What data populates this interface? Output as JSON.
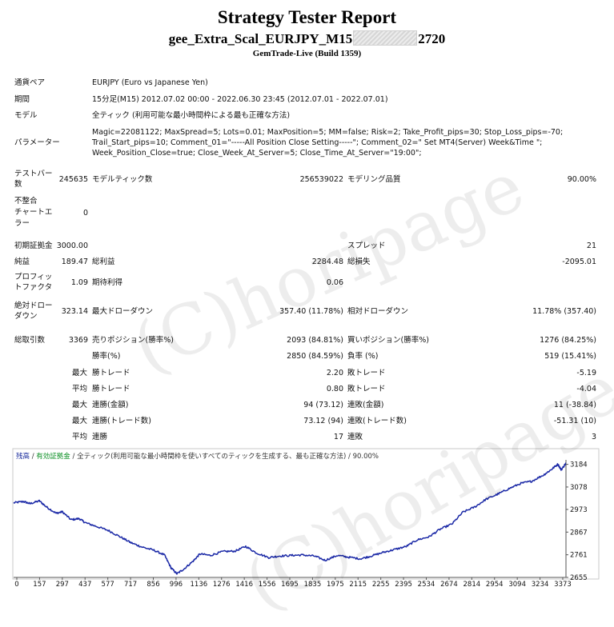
{
  "report": {
    "title": "Strategy Tester Report",
    "ea_prefix": "gee_Extra_Scal_EURJPY_M15",
    "ea_suffix": "2720",
    "build": "GemTrade-Live (Build 1359)"
  },
  "info": {
    "symbol_label": "通貨ペア",
    "symbol_value": "EURJPY (Euro vs Japanese Yen)",
    "period_label": "期間",
    "period_value": "15分足(M15) 2012.07.02 00:00 - 2022.06.30 23:45 (2012.07.01 - 2022.07.01)",
    "model_label": "モデル",
    "model_value": "全ティック (利用可能な最小時間枠による最も正確な方法)",
    "params_label": "パラメーター",
    "params_lines": [
      "Magic=22081122; MaxSpread=5; Lots=0.01; MaxPosition=5; MM=false; Risk=2; Take_Profit_pips=30; Stop_Loss_pips=-70;",
      "Trail_Start_pips=10; Comment_01=\"-----All Position Close Setting-----\"; Comment_02=\" Set MT4(Server) Week&Time \";",
      "Week_Position_Close=true; Close_Week_At_Server=5; Close_Time_At_Server=\"19:00\";"
    ]
  },
  "stats": {
    "bars_label_1": "テストバー",
    "bars_label_2": "数",
    "bars_value": "245635",
    "ticks_label": "モデルティック数",
    "ticks_value": "256539022",
    "quality_label": "モデリング品質",
    "quality_value": "90.00%",
    "mismatch_label_1": "不整合",
    "mismatch_label_2": "チャートエ",
    "mismatch_label_3": "ラー",
    "mismatch_value": "0",
    "deposit_label": "初期証拠金",
    "deposit_value": "3000.00",
    "spread_label": "スプレッド",
    "spread_value": "21",
    "net_label": "純益",
    "net_value": "189.47",
    "gross_profit_label": "総利益",
    "gross_profit_value": "2284.48",
    "gross_loss_label": "総損失",
    "gross_loss_value": "-2095.01",
    "pf_label_1": "プロフィッ",
    "pf_label_2": "トファクタ",
    "pf_value": "1.09",
    "payoff_label": "期待利得",
    "payoff_value": "0.06",
    "abs_dd_label_1": "絶対ドロー",
    "abs_dd_label_2": "ダウン",
    "abs_dd_value": "323.14",
    "max_dd_label": "最大ドローダウン",
    "max_dd_value": "357.40 (11.78%)",
    "rel_dd_label": "相対ドローダウン",
    "rel_dd_value": "11.78% (357.40)",
    "trades_label": "総取引数",
    "trades_value": "3369",
    "short_label": "売りポジション(勝率%)",
    "short_value": "2093 (84.81%)",
    "long_label": "買いポジション(勝率%)",
    "long_value": "1276 (84.25%)",
    "win_pct_label": "勝率(%)",
    "win_pct_value": "2850 (84.59%)",
    "loss_pct_label": "負率 (%)",
    "loss_pct_value": "519 (15.41%)",
    "largest": "最大",
    "largest_win_label": "勝トレード",
    "largest_win_value": "2.20",
    "largest_loss_label": "敗トレード",
    "largest_loss_value": "-5.19",
    "average": "平均",
    "avg_win_label": "勝トレード",
    "avg_win_value": "0.80",
    "avg_loss_label": "敗トレード",
    "avg_loss_value": "-4.04",
    "max_cons_wins_label": "連勝(金額)",
    "max_cons_wins_value": "94 (73.12)",
    "max_cons_losses_label": "連敗(金額)",
    "max_cons_losses_value": "11 (-38.84)",
    "max_cons_profit_label": "連勝(トレード数)",
    "max_cons_profit_value": "73.12 (94)",
    "max_cons_loss_label": "連敗(トレード数)",
    "max_cons_loss_value": "-51.31 (10)",
    "avg_cons_wins_label": "連勝",
    "avg_cons_wins_value": "17",
    "avg_cons_losses_label": "連敗",
    "avg_cons_losses_value": "3"
  },
  "watermark": "(C)horipage",
  "chart_data": {
    "type": "line",
    "legend": {
      "balance": "残高",
      "sep1": " / ",
      "equity": "有効証拠金",
      "sep2": " / ",
      "model": "全ティック(利用可能な最小時間枠を使いすべてのティックを生成する、最も正確な方法)",
      "sep3": " / ",
      "quality": "90.00%"
    },
    "x_ticks": [
      0,
      157,
      297,
      437,
      577,
      717,
      856,
      996,
      1136,
      1276,
      1416,
      1556,
      1695,
      1835,
      1975,
      2115,
      2255,
      2395,
      2534,
      2674,
      2814,
      2954,
      3094,
      3234,
      3373
    ],
    "y_ticks": [
      2655,
      2761,
      2867,
      2973,
      3078,
      3184
    ],
    "xlim": [
      0,
      3369
    ],
    "ylim": [
      2655,
      3205
    ],
    "series": [
      {
        "x": [
          0,
          60,
          100,
          157,
          200,
          260,
          297,
          350,
          400,
          437,
          500,
          577,
          650,
          717,
          780,
          856,
          920,
          960,
          996,
          1040,
          1100,
          1136,
          1200,
          1276,
          1350,
          1416,
          1480,
          1556,
          1620,
          1695,
          1760,
          1835,
          1900,
          1975,
          2040,
          2115,
          2180,
          2255,
          2320,
          2395,
          2460,
          2534,
          2600,
          2674,
          2740,
          2814,
          2880,
          2954,
          3020,
          3094,
          3160,
          3234,
          3280,
          3320,
          3340,
          3369
        ],
        "y": [
          3004,
          3010,
          3000,
          3013,
          2985,
          2955,
          2962,
          2925,
          2930,
          2911,
          2895,
          2875,
          2845,
          2817,
          2798,
          2782,
          2760,
          2700,
          2672,
          2695,
          2735,
          2765,
          2758,
          2776,
          2778,
          2800,
          2770,
          2748,
          2755,
          2758,
          2760,
          2755,
          2735,
          2758,
          2750,
          2742,
          2755,
          2772,
          2785,
          2800,
          2830,
          2845,
          2880,
          2905,
          2960,
          2985,
          3020,
          3045,
          3070,
          3095,
          3105,
          3135,
          3160,
          3185,
          3158,
          3190
        ]
      }
    ]
  }
}
